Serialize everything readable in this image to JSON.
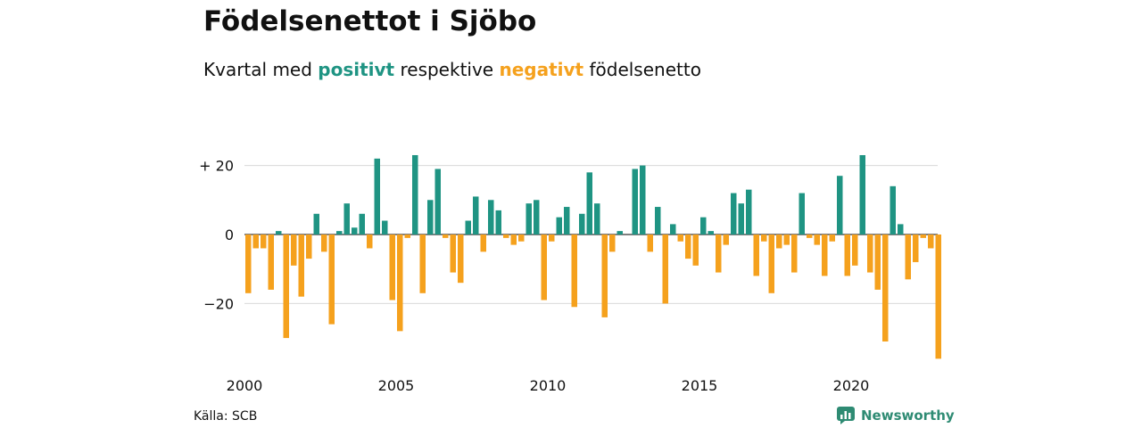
{
  "title": "Födelsenettot i Sjöbo",
  "subtitle": {
    "prefix": "Kvartal med ",
    "positive_word": "positivt",
    "middle": " respektive ",
    "negative_word": "negativt",
    "suffix": " födelsenetto"
  },
  "colors": {
    "positive": "#1f9483",
    "negative": "#f5a11d",
    "grid": "#d9d9d9",
    "brand": "#2e8b73"
  },
  "source": "Källa: SCB",
  "brand": {
    "name": "Newsworthy",
    "icon": "newsworthy-logo-icon"
  },
  "chart_data": {
    "type": "bar",
    "x_start": "2000 Q1",
    "x_end": "2023 Q1",
    "x_ticks": [
      {
        "year": 2000,
        "label": "2000"
      },
      {
        "year": 2005,
        "label": "2005"
      },
      {
        "year": 2010,
        "label": "2010"
      },
      {
        "year": 2015,
        "label": "2015"
      },
      {
        "year": 2020,
        "label": "2020"
      }
    ],
    "y_ticks": [
      {
        "value": 20,
        "label": "+ 20"
      },
      {
        "value": 0,
        "label": "0"
      },
      {
        "value": -20,
        "label": "−20"
      }
    ],
    "ylim": [
      -38,
      26
    ],
    "grid": true,
    "values": [
      -17,
      -4,
      -4,
      -16,
      1,
      -30,
      -9,
      -18,
      -7,
      6,
      -5,
      -26,
      1,
      9,
      2,
      6,
      -4,
      22,
      4,
      -19,
      -28,
      -1,
      23,
      -17,
      10,
      19,
      -1,
      -11,
      -14,
      4,
      11,
      -5,
      10,
      7,
      -1,
      -3,
      -2,
      9,
      10,
      -19,
      -2,
      5,
      8,
      -21,
      6,
      18,
      9,
      -24,
      -5,
      1,
      0,
      19,
      20,
      -5,
      8,
      -20,
      3,
      -2,
      -7,
      -9,
      5,
      1,
      -11,
      -3,
      12,
      9,
      13,
      -12,
      -2,
      -17,
      -4,
      -3,
      -11,
      12,
      -1,
      -3,
      -12,
      -2,
      17,
      -12,
      -9,
      23,
      -11,
      -16,
      -31,
      14,
      3,
      -13,
      -8,
      -1,
      -4,
      -36
    ]
  }
}
